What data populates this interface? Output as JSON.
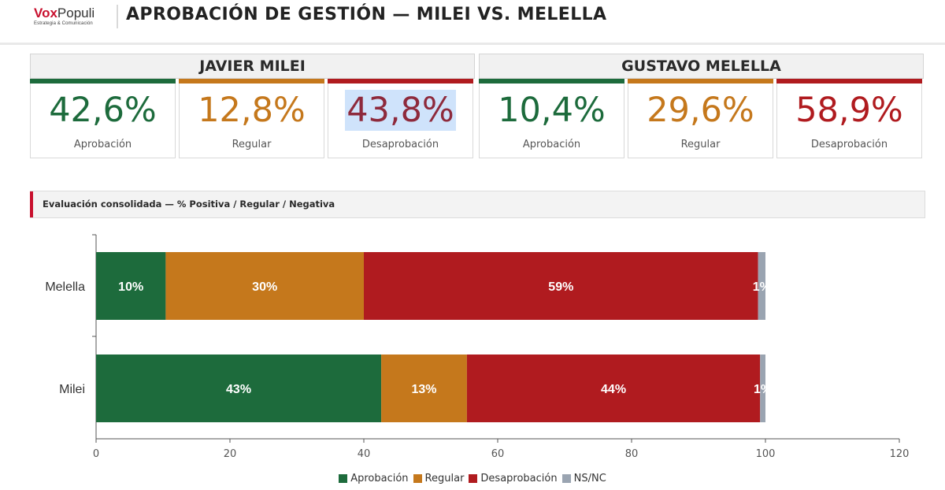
{
  "brand": {
    "name_bold": "Vox",
    "name_regular": "Populi",
    "tagline": "Estrategia & Comunicación"
  },
  "title": "APROBACIÓN DE GESTIÓN — MILEI VS. MELELLA",
  "colors": {
    "aprobacion": "#1d6b3c",
    "regular": "#c5781c",
    "desaprobacion": "#b01b1f",
    "nsnc": "#9aa4b1",
    "accent": "#c8102e"
  },
  "candidates": [
    {
      "name": "JAVIER MILEI",
      "stats": [
        {
          "value": "42,6%",
          "label": "Aprobación"
        },
        {
          "value": "12,8%",
          "label": "Regular"
        },
        {
          "value": "43,8%",
          "label": "Desaprobación"
        }
      ]
    },
    {
      "name": "GUSTAVO MELELLA",
      "stats": [
        {
          "value": "10,4%",
          "label": "Aprobación"
        },
        {
          "value": "29,6%",
          "label": "Regular"
        },
        {
          "value": "58,9%",
          "label": "Desaprobación"
        }
      ]
    }
  ],
  "section": {
    "title": "Evaluación consolidada — % Positiva / Regular / Negativa"
  },
  "chart_data": {
    "type": "bar",
    "orientation": "horizontal",
    "stacked": true,
    "categories": [
      "Melella",
      "Milei"
    ],
    "series": [
      {
        "name": "Aprobación",
        "values": [
          10.4,
          42.6
        ],
        "labels": [
          "10%",
          "43%"
        ]
      },
      {
        "name": "Regular",
        "values": [
          29.6,
          12.8
        ],
        "labels": [
          "30%",
          "13%"
        ]
      },
      {
        "name": "Desaprobación",
        "values": [
          58.9,
          43.8
        ],
        "labels": [
          "59%",
          "44%"
        ]
      },
      {
        "name": "NS/NC",
        "values": [
          1.1,
          0.8
        ],
        "labels": [
          "1%",
          "1%"
        ]
      }
    ],
    "xlim": [
      0,
      120
    ],
    "xticks": [
      0,
      20,
      40,
      60,
      80,
      100,
      120
    ],
    "grid": false,
    "legend_position": "bottom"
  }
}
